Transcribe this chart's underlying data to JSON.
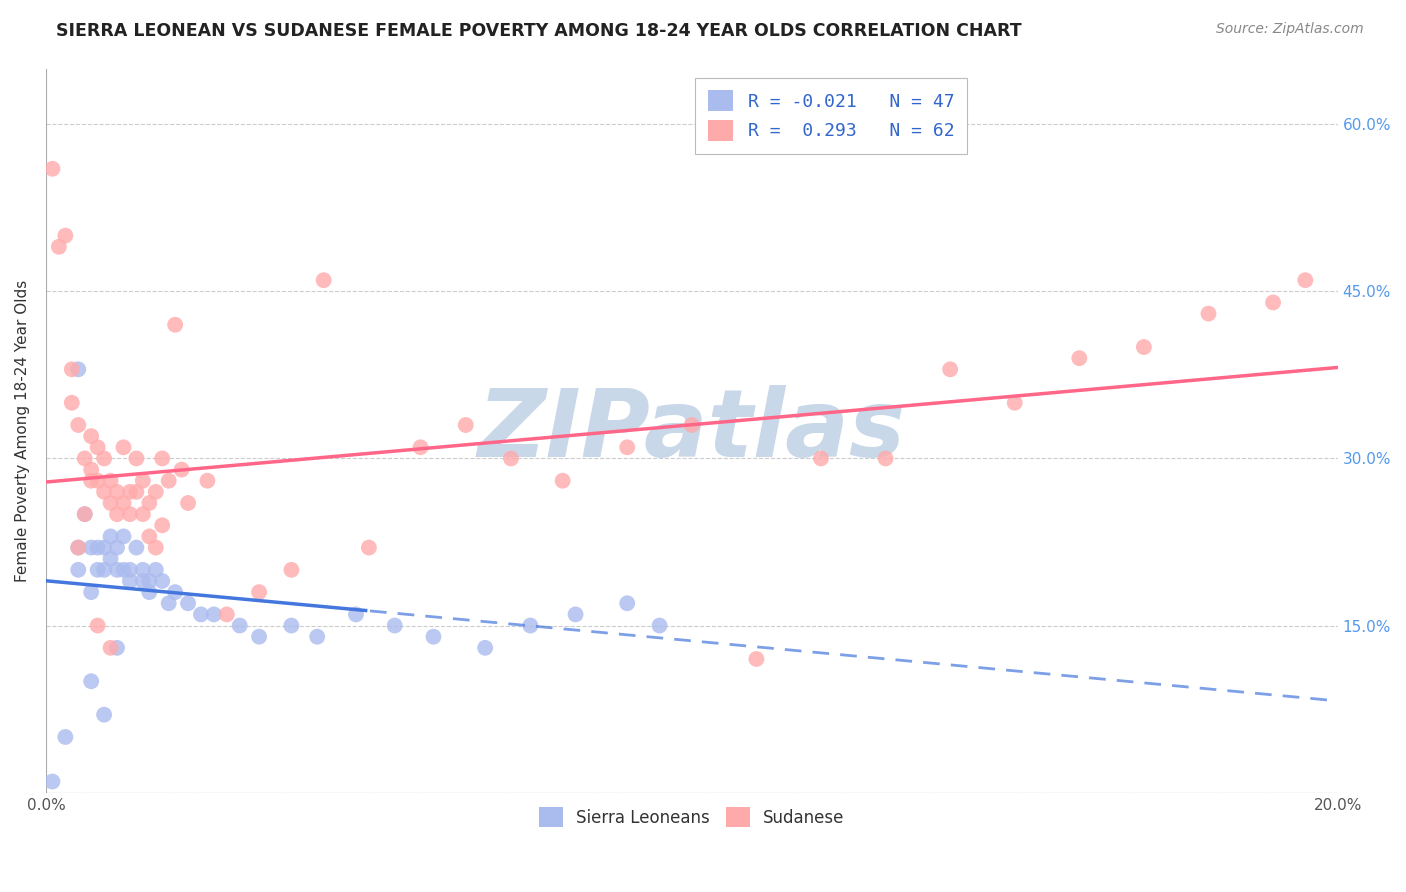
{
  "title": "SIERRA LEONEAN VS SUDANESE FEMALE POVERTY AMONG 18-24 YEAR OLDS CORRELATION CHART",
  "source": "Source: ZipAtlas.com",
  "ylabel": "Female Poverty Among 18-24 Year Olds",
  "xlim": [
    0.0,
    0.2
  ],
  "ylim": [
    0.0,
    0.65
  ],
  "xticks": [
    0.0,
    0.04,
    0.08,
    0.12,
    0.16,
    0.2
  ],
  "yticks": [
    0.0,
    0.15,
    0.3,
    0.45,
    0.6
  ],
  "grid_color": "#cccccc",
  "background_color": "#ffffff",
  "watermark": "ZIPatlas",
  "watermark_color": "#c8d8e8",
  "sl_color": "#aabbee",
  "su_color": "#ffaaaa",
  "sl_line_color": "#4477dd",
  "su_line_color": "#ff6688",
  "sl_R": -0.021,
  "sl_N": 47,
  "su_R": 0.293,
  "su_N": 62,
  "legend_R_color": "#3366cc",
  "sl_label": "Sierra Leoneans",
  "su_label": "Sudanese",
  "sl_x": [
    0.001,
    0.003,
    0.005,
    0.005,
    0.006,
    0.007,
    0.007,
    0.008,
    0.008,
    0.009,
    0.009,
    0.01,
    0.01,
    0.011,
    0.011,
    0.012,
    0.012,
    0.013,
    0.013,
    0.014,
    0.015,
    0.015,
    0.016,
    0.016,
    0.017,
    0.018,
    0.019,
    0.02,
    0.022,
    0.024,
    0.026,
    0.03,
    0.033,
    0.038,
    0.042,
    0.048,
    0.054,
    0.06,
    0.068,
    0.075,
    0.082,
    0.09,
    0.095,
    0.005,
    0.007,
    0.009,
    0.011
  ],
  "sl_y": [
    0.01,
    0.05,
    0.2,
    0.22,
    0.25,
    0.22,
    0.18,
    0.2,
    0.22,
    0.2,
    0.22,
    0.21,
    0.23,
    0.2,
    0.22,
    0.23,
    0.2,
    0.19,
    0.2,
    0.22,
    0.19,
    0.2,
    0.18,
    0.19,
    0.2,
    0.19,
    0.17,
    0.18,
    0.17,
    0.16,
    0.16,
    0.15,
    0.14,
    0.15,
    0.14,
    0.16,
    0.15,
    0.14,
    0.13,
    0.15,
    0.16,
    0.17,
    0.15,
    0.38,
    0.1,
    0.07,
    0.13
  ],
  "su_x": [
    0.001,
    0.002,
    0.003,
    0.004,
    0.004,
    0.005,
    0.005,
    0.006,
    0.006,
    0.007,
    0.007,
    0.007,
    0.008,
    0.008,
    0.009,
    0.009,
    0.01,
    0.01,
    0.011,
    0.011,
    0.012,
    0.012,
    0.013,
    0.013,
    0.014,
    0.014,
    0.015,
    0.015,
    0.016,
    0.016,
    0.017,
    0.017,
    0.018,
    0.018,
    0.019,
    0.02,
    0.021,
    0.022,
    0.025,
    0.028,
    0.033,
    0.038,
    0.043,
    0.05,
    0.058,
    0.065,
    0.072,
    0.08,
    0.09,
    0.1,
    0.11,
    0.12,
    0.13,
    0.14,
    0.15,
    0.16,
    0.17,
    0.18,
    0.19,
    0.195,
    0.008,
    0.01
  ],
  "su_y": [
    0.56,
    0.49,
    0.5,
    0.35,
    0.38,
    0.22,
    0.33,
    0.3,
    0.25,
    0.28,
    0.32,
    0.29,
    0.28,
    0.31,
    0.3,
    0.27,
    0.28,
    0.26,
    0.27,
    0.25,
    0.26,
    0.31,
    0.27,
    0.25,
    0.3,
    0.27,
    0.28,
    0.25,
    0.26,
    0.23,
    0.27,
    0.22,
    0.24,
    0.3,
    0.28,
    0.42,
    0.29,
    0.26,
    0.28,
    0.16,
    0.18,
    0.2,
    0.46,
    0.22,
    0.31,
    0.33,
    0.3,
    0.28,
    0.31,
    0.33,
    0.12,
    0.3,
    0.3,
    0.38,
    0.35,
    0.39,
    0.4,
    0.43,
    0.44,
    0.46,
    0.15,
    0.13
  ]
}
